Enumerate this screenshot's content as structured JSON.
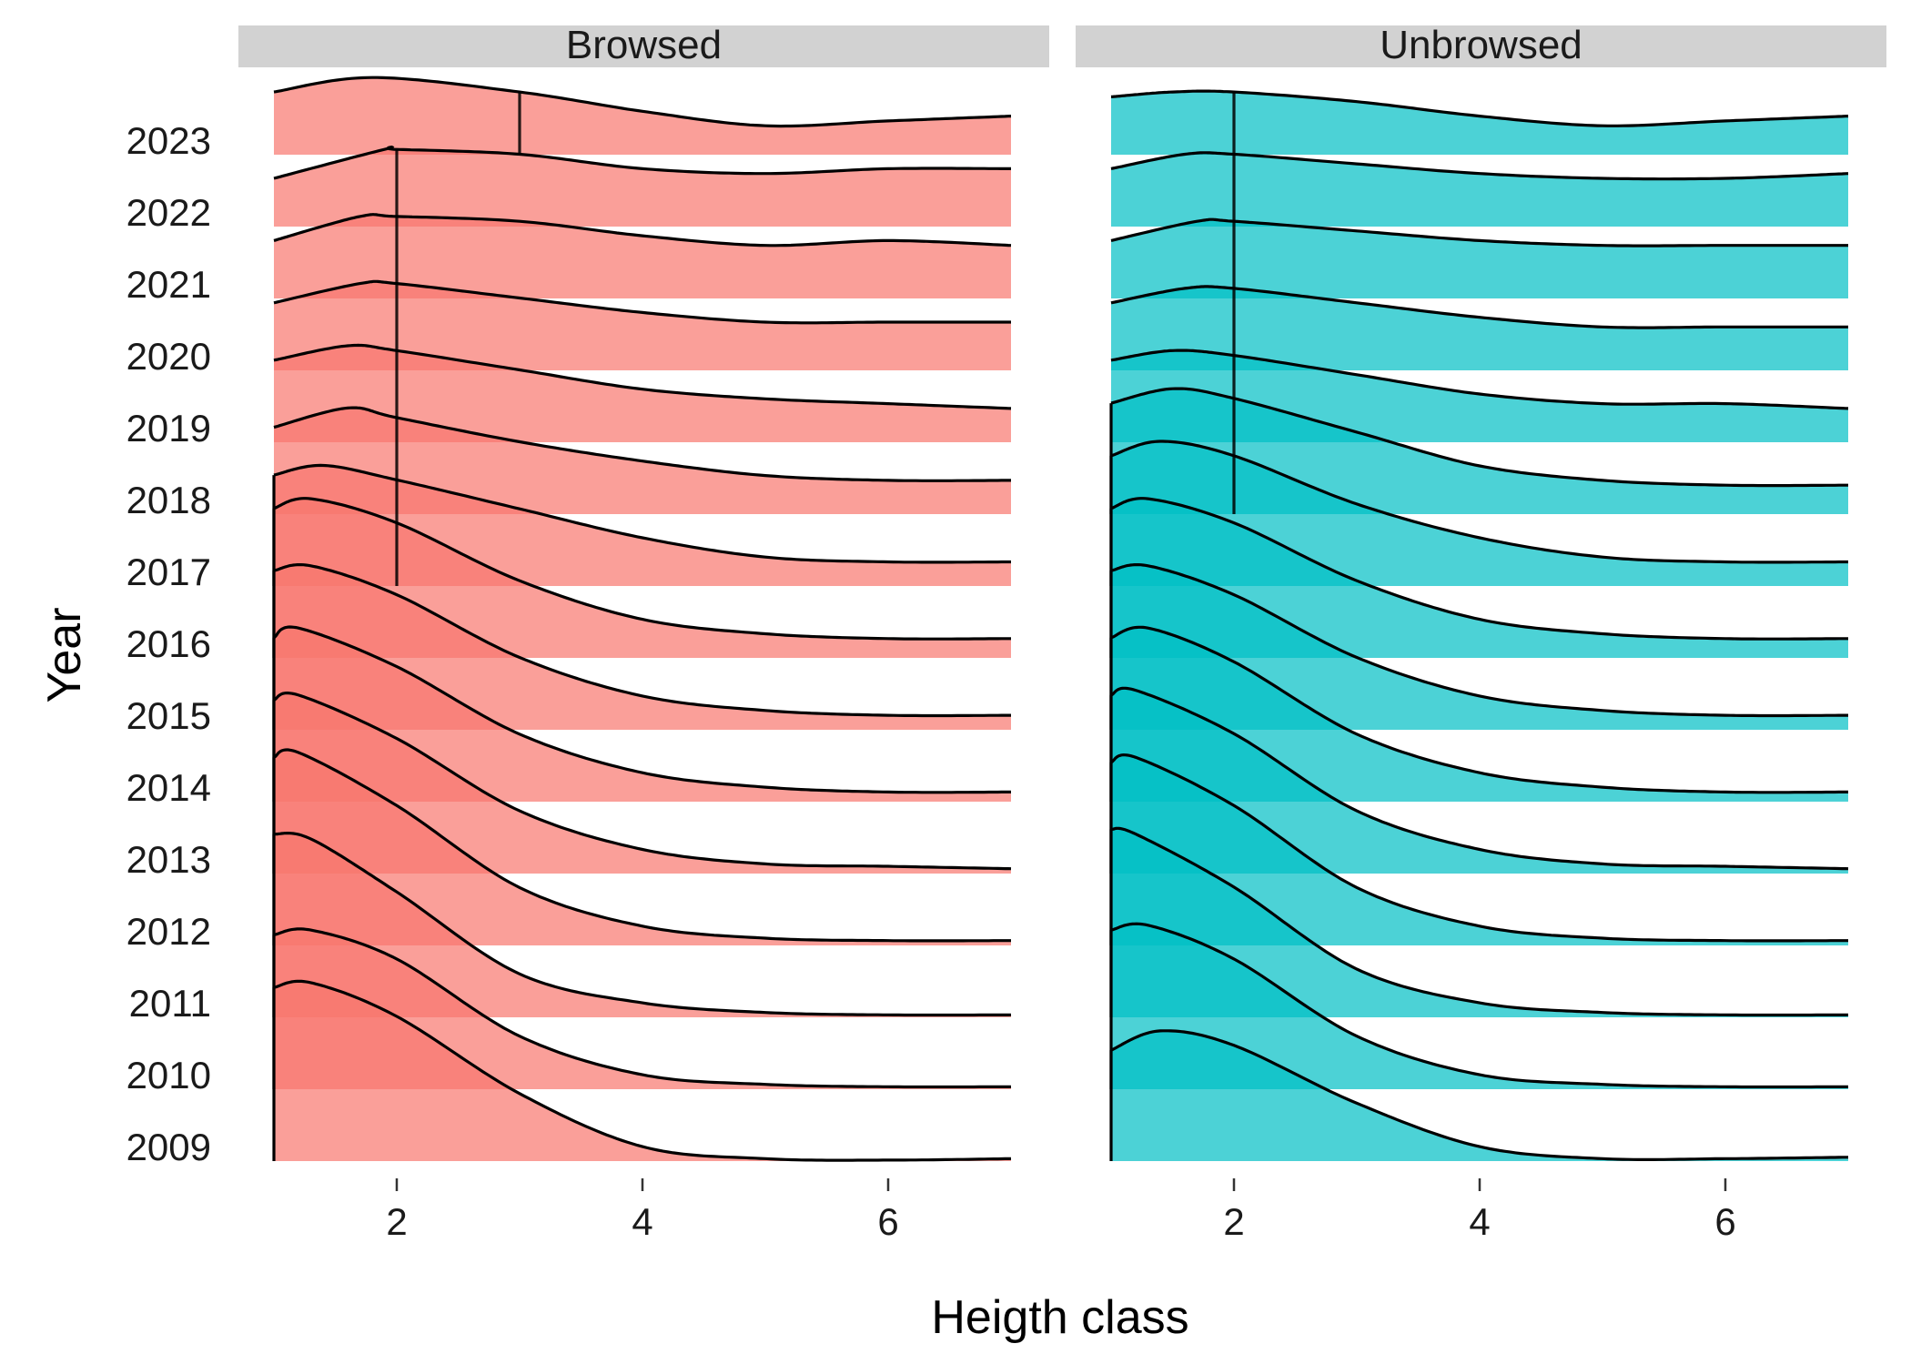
{
  "chart_data": {
    "type": "ridgeline",
    "xlabel": "Heigth class",
    "ylabel": "Year",
    "xlim": [
      1,
      7
    ],
    "x_ticks": [
      2,
      4,
      6
    ],
    "years": [
      "2009",
      "2010",
      "2011",
      "2012",
      "2013",
      "2014",
      "2015",
      "2016",
      "2017",
      "2018",
      "2019",
      "2020",
      "2021",
      "2022",
      "2023"
    ],
    "grid": false,
    "panels": [
      {
        "name": "Browsed",
        "color": "#F8766D",
        "median_lines": [
          {
            "from_year": "2017",
            "to_year": "2022",
            "x": 2
          },
          {
            "year": "2023",
            "x": 3
          }
        ],
        "densities": {
          "2009": {
            "x": [
              1,
              1.3,
              2,
              3,
              4,
              5,
              6,
              7
            ],
            "y": [
              0.36,
              0.37,
              0.3,
              0.14,
              0.03,
              0.005,
              0.002,
              0.005
            ]
          },
          "2010": {
            "x": [
              1,
              1.3,
              2,
              3,
              4,
              5,
              6,
              7
            ],
            "y": [
              0.32,
              0.33,
              0.27,
              0.11,
              0.03,
              0.01,
              0.005,
              0.005
            ]
          },
          "2011": {
            "x": [
              1,
              1.3,
              2,
              3,
              4,
              5,
              6,
              7
            ],
            "y": [
              0.38,
              0.37,
              0.26,
              0.09,
              0.03,
              0.01,
              0.005,
              0.005
            ]
          },
          "2012": {
            "x": [
              1,
              1.2,
              2,
              3,
              4,
              5,
              6,
              7
            ],
            "y": [
              0.39,
              0.4,
              0.29,
              0.12,
              0.04,
              0.015,
              0.01,
              0.01
            ]
          },
          "2013": {
            "x": [
              1,
              1.2,
              2,
              3,
              4,
              5,
              6,
              7
            ],
            "y": [
              0.36,
              0.37,
              0.28,
              0.13,
              0.05,
              0.02,
              0.015,
              0.01
            ]
          },
          "2014": {
            "x": [
              1,
              1.2,
              2,
              3,
              4,
              5,
              6,
              7
            ],
            "y": [
              0.34,
              0.36,
              0.28,
              0.14,
              0.06,
              0.03,
              0.02,
              0.02
            ]
          },
          "2015": {
            "x": [
              1,
              1.3,
              2,
              3,
              4,
              5,
              6,
              7
            ],
            "y": [
              0.33,
              0.34,
              0.28,
              0.15,
              0.07,
              0.04,
              0.03,
              0.03
            ]
          },
          "2016": {
            "x": [
              1,
              1.3,
              2,
              3,
              4,
              5,
              6,
              7
            ],
            "y": [
              0.31,
              0.33,
              0.28,
              0.16,
              0.08,
              0.05,
              0.04,
              0.04
            ]
          },
          "2017": {
            "x": [
              1,
              1.4,
              2,
              3,
              4,
              5,
              6,
              7
            ],
            "y": [
              0.23,
              0.25,
              0.22,
              0.16,
              0.1,
              0.06,
              0.05,
              0.05
            ]
          },
          "2018": {
            "x": [
              1,
              1.6,
              2,
              3,
              4,
              5,
              6,
              7
            ],
            "y": [
              0.18,
              0.22,
              0.2,
              0.15,
              0.11,
              0.08,
              0.07,
              0.07
            ]
          },
          "2019": {
            "x": [
              1,
              1.6,
              2,
              3,
              4,
              5,
              6,
              7
            ],
            "y": [
              0.17,
              0.2,
              0.19,
              0.15,
              0.11,
              0.09,
              0.08,
              0.07
            ]
          },
          "2020": {
            "x": [
              1,
              1.7,
              2,
              3,
              4,
              5,
              6,
              7
            ],
            "y": [
              0.14,
              0.18,
              0.18,
              0.15,
              0.12,
              0.1,
              0.1,
              0.1
            ]
          },
          "2021": {
            "x": [
              1,
              1.7,
              2,
              3,
              4,
              5,
              6,
              7
            ],
            "y": [
              0.12,
              0.17,
              0.17,
              0.16,
              0.13,
              0.11,
              0.12,
              0.11
            ]
          },
          "2022": {
            "x": [
              1,
              1.9,
              2,
              3,
              4,
              5,
              6,
              7
            ],
            "y": [
              0.1,
              0.16,
              0.16,
              0.15,
              0.12,
              0.11,
              0.12,
              0.12
            ]
          },
          "2023": {
            "x": [
              1,
              1.8,
              3,
              4,
              5,
              6,
              7
            ],
            "y": [
              0.13,
              0.16,
              0.13,
              0.09,
              0.06,
              0.07,
              0.08
            ]
          }
        }
      },
      {
        "name": "Unbrowsed",
        "color": "#00BFC4",
        "median_lines": [
          {
            "from_year": "2018",
            "to_year": "2023",
            "x": 2
          }
        ],
        "densities": {
          "2009": {
            "x": [
              1,
              1.4,
              2,
              3,
              4,
              5,
              6,
              7
            ],
            "y": [
              0.23,
              0.27,
              0.24,
              0.12,
              0.03,
              0.005,
              0.005,
              0.008
            ]
          },
          "2010": {
            "x": [
              1,
              1.3,
              2,
              3,
              4,
              5,
              6,
              7
            ],
            "y": [
              0.33,
              0.34,
              0.27,
              0.11,
              0.03,
              0.01,
              0.005,
              0.005
            ]
          },
          "2011": {
            "x": [
              1,
              1.2,
              2,
              3,
              4,
              5,
              6,
              7
            ],
            "y": [
              0.39,
              0.38,
              0.27,
              0.1,
              0.03,
              0.01,
              0.005,
              0.005
            ]
          },
          "2012": {
            "x": [
              1,
              1.2,
              2,
              3,
              4,
              5,
              6,
              7
            ],
            "y": [
              0.38,
              0.39,
              0.29,
              0.12,
              0.04,
              0.015,
              0.01,
              0.01
            ]
          },
          "2013": {
            "x": [
              1,
              1.2,
              2,
              3,
              4,
              5,
              6,
              7
            ],
            "y": [
              0.37,
              0.38,
              0.29,
              0.13,
              0.05,
              0.02,
              0.015,
              0.01
            ]
          },
          "2014": {
            "x": [
              1,
              1.3,
              2,
              3,
              4,
              5,
              6,
              7
            ],
            "y": [
              0.34,
              0.36,
              0.29,
              0.14,
              0.06,
              0.03,
              0.02,
              0.02
            ]
          },
          "2015": {
            "x": [
              1,
              1.3,
              2,
              3,
              4,
              5,
              6,
              7
            ],
            "y": [
              0.33,
              0.34,
              0.28,
              0.15,
              0.07,
              0.04,
              0.03,
              0.03
            ]
          },
          "2016": {
            "x": [
              1,
              1.3,
              2,
              3,
              4,
              5,
              6,
              7
            ],
            "y": [
              0.31,
              0.33,
              0.28,
              0.16,
              0.08,
              0.05,
              0.04,
              0.04
            ]
          },
          "2017": {
            "x": [
              1,
              1.4,
              2,
              3,
              4,
              5,
              6,
              7
            ],
            "y": [
              0.27,
              0.3,
              0.27,
              0.17,
              0.1,
              0.06,
              0.05,
              0.05
            ]
          },
          "2018": {
            "x": [
              1,
              1.5,
              2,
              3,
              4,
              5,
              6,
              7
            ],
            "y": [
              0.23,
              0.26,
              0.24,
              0.17,
              0.1,
              0.07,
              0.06,
              0.06
            ]
          },
          "2019": {
            "x": [
              1,
              1.5,
              2,
              3,
              4,
              5,
              6,
              7
            ],
            "y": [
              0.17,
              0.19,
              0.18,
              0.14,
              0.1,
              0.08,
              0.08,
              0.07
            ]
          },
          "2020": {
            "x": [
              1,
              1.6,
              2,
              3,
              4,
              5,
              6,
              7
            ],
            "y": [
              0.14,
              0.17,
              0.17,
              0.14,
              0.11,
              0.09,
              0.09,
              0.09
            ]
          },
          "2021": {
            "x": [
              1,
              1.7,
              2,
              3,
              4,
              5,
              6,
              7
            ],
            "y": [
              0.12,
              0.16,
              0.16,
              0.14,
              0.12,
              0.11,
              0.11,
              0.11
            ]
          },
          "2022": {
            "x": [
              1,
              1.6,
              2,
              3,
              4,
              5,
              6,
              7
            ],
            "y": [
              0.12,
              0.15,
              0.15,
              0.13,
              0.11,
              0.1,
              0.1,
              0.11
            ]
          },
          "2023": {
            "x": [
              1,
              1.5,
              2,
              3,
              4,
              5,
              6,
              7
            ],
            "y": [
              0.12,
              0.13,
              0.13,
              0.11,
              0.08,
              0.06,
              0.07,
              0.08
            ]
          }
        }
      }
    ]
  }
}
